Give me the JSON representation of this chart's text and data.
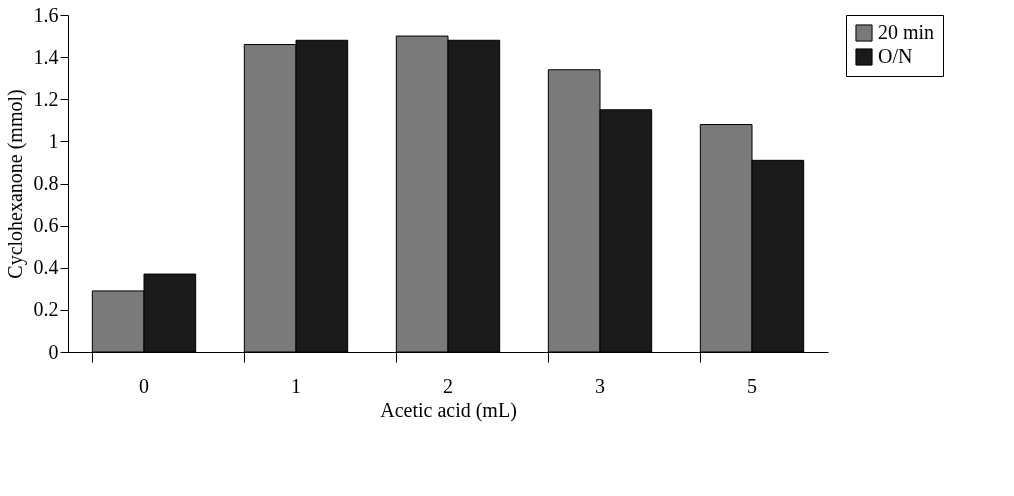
{
  "chart_data": {
    "type": "bar",
    "xlabel": "Acetic acid (mL)",
    "ylabel": "Cyclohexanone (mmol)",
    "categories": [
      "0",
      "1",
      "2",
      "3",
      "5"
    ],
    "series": [
      {
        "name": "20 min",
        "color": "#7a7a7a",
        "values": [
          0.29,
          1.46,
          1.5,
          1.34,
          1.08
        ]
      },
      {
        "name": "O/N",
        "color": "#1a1a1a",
        "values": [
          0.37,
          1.48,
          1.48,
          1.15,
          0.91
        ]
      }
    ],
    "ylim": [
      0,
      1.6
    ],
    "yticks": [
      0,
      0.2,
      0.4,
      0.6,
      0.8,
      1,
      1.2,
      1.4,
      1.6
    ],
    "grid": false,
    "legend": "right"
  }
}
